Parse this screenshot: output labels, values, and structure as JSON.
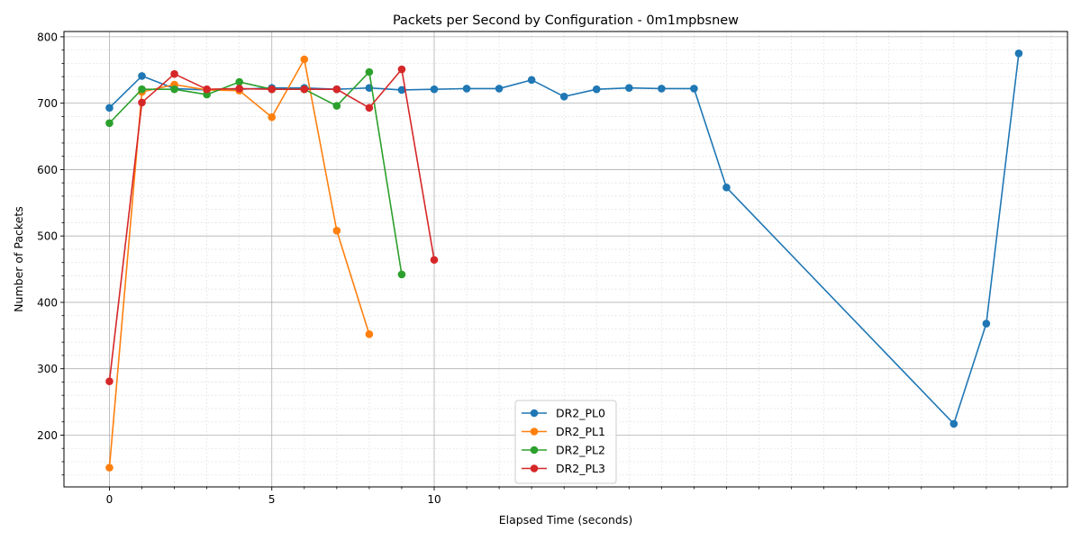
{
  "chart_data": {
    "type": "line",
    "title": "Packets per Second by Configuration - 0m1mpbsnew",
    "xlabel": "Elapsed Time (seconds)",
    "ylabel": "Number of Packets",
    "xlim": [
      -1.4,
      29.5
    ],
    "ylim": [
      122,
      808
    ],
    "x_ticks": [
      0,
      5,
      10
    ],
    "x_minor_ticks": [
      1,
      2,
      3,
      4,
      6,
      7,
      8,
      9,
      11,
      12,
      13,
      14,
      15,
      16,
      17,
      18,
      19,
      20,
      21,
      22,
      23,
      24,
      25,
      26,
      27,
      28,
      29
    ],
    "x_grid_ticks": [
      0,
      5,
      10
    ],
    "y_ticks": [
      200,
      300,
      400,
      500,
      600,
      700,
      800
    ],
    "grid": "major solid, minor dotted",
    "legend_position": "bottom-center",
    "series": [
      {
        "name": "DR2_PL0",
        "color": "#1f77b4",
        "x": [
          0,
          1,
          2,
          3,
          4,
          5,
          6,
          7,
          8,
          9,
          10,
          11,
          12,
          13,
          14,
          15,
          16,
          17,
          18,
          19,
          26,
          27,
          28
        ],
        "y": [
          693,
          741,
          722,
          720,
          721,
          723,
          723,
          721,
          723,
          720,
          721,
          722,
          722,
          735,
          710,
          721,
          723,
          722,
          722,
          573,
          217,
          368,
          775
        ]
      },
      {
        "name": "DR2_PL1",
        "color": "#ff7f0e",
        "x": [
          0,
          1,
          2,
          3,
          4,
          5,
          6,
          7,
          8
        ],
        "y": [
          151,
          717,
          728,
          720,
          719,
          679,
          766,
          508,
          352
        ]
      },
      {
        "name": "DR2_PL2",
        "color": "#2ca02c",
        "x": [
          0,
          1,
          2,
          3,
          4,
          5,
          6,
          7,
          8,
          9
        ],
        "y": [
          670,
          721,
          721,
          713,
          732,
          721,
          721,
          696,
          747,
          442
        ]
      },
      {
        "name": "DR2_PL3",
        "color": "#d62728",
        "x": [
          0,
          1,
          2,
          3,
          4,
          5,
          6,
          7,
          8,
          9,
          10
        ],
        "y": [
          281,
          701,
          744,
          721,
          722,
          721,
          721,
          721,
          693,
          751,
          464
        ]
      }
    ]
  }
}
